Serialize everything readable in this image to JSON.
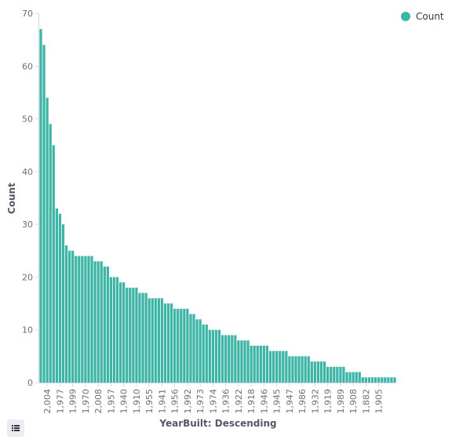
{
  "chart_data": {
    "type": "bar",
    "x_label": "YearBuilt: Descending",
    "y_label": "Count",
    "categories": [
      null,
      null,
      "2,004",
      null,
      null,
      null,
      "1,977",
      null,
      null,
      null,
      "1,999",
      null,
      null,
      null,
      "1,970",
      null,
      null,
      null,
      "2,008",
      null,
      null,
      null,
      "1,957",
      null,
      null,
      null,
      "1,940",
      null,
      null,
      null,
      "1,910",
      null,
      null,
      null,
      "1,955",
      null,
      null,
      null,
      "1,941",
      null,
      null,
      null,
      "1,956",
      null,
      null,
      null,
      "1,992",
      null,
      null,
      null,
      "1,973",
      null,
      null,
      null,
      "1,974",
      null,
      null,
      null,
      "1,936",
      null,
      null,
      null,
      "1,922",
      null,
      null,
      null,
      "1,918",
      null,
      null,
      null,
      "1,946",
      null,
      null,
      null,
      "1,945",
      null,
      null,
      null,
      "1,947",
      null,
      null,
      null,
      "1,986",
      null,
      null,
      null,
      "1,932",
      null,
      null,
      null,
      "1,919",
      null,
      null,
      null,
      "1,989",
      null,
      null,
      null,
      "1,908",
      null,
      null,
      null,
      "1,882",
      null,
      null,
      null,
      "1,905",
      null,
      null,
      null,
      null,
      null
    ],
    "series": [
      {
        "name": "Count",
        "color": "#3db5a6",
        "values": [
          67,
          64,
          54,
          49,
          45,
          33,
          32,
          30,
          26,
          25,
          25,
          24,
          24,
          24,
          24,
          24,
          24,
          23,
          23,
          23,
          22,
          22,
          20,
          20,
          20,
          19,
          19,
          18,
          18,
          18,
          18,
          17,
          17,
          17,
          16,
          16,
          16,
          16,
          16,
          15,
          15,
          15,
          14,
          14,
          14,
          14,
          14,
          13,
          13,
          12,
          12,
          11,
          11,
          10,
          10,
          10,
          10,
          9,
          9,
          9,
          9,
          9,
          8,
          8,
          8,
          8,
          7,
          7,
          7,
          7,
          7,
          7,
          6,
          6,
          6,
          6,
          6,
          6,
          5,
          5,
          5,
          5,
          5,
          5,
          5,
          4,
          4,
          4,
          4,
          4,
          3,
          3,
          3,
          3,
          3,
          3,
          2,
          2,
          2,
          2,
          2,
          1,
          1,
          1,
          1,
          1,
          1,
          1,
          1,
          1,
          1,
          1
        ]
      }
    ],
    "ylim": [
      0,
      70
    ],
    "yticks": [
      0,
      10,
      20,
      30,
      40,
      50,
      60,
      70
    ],
    "legend": "top-right"
  }
}
